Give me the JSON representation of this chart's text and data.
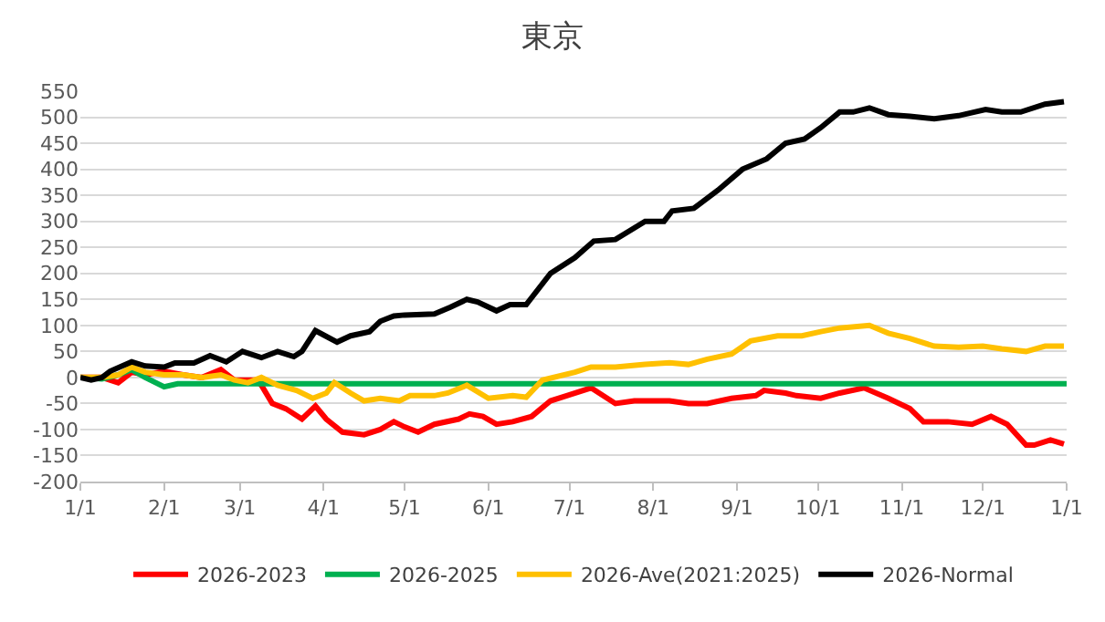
{
  "chart_data": {
    "type": "line",
    "title": "東京",
    "xlim": [
      "2026-01-01",
      "2027-01-01"
    ],
    "xticks": [
      {
        "value": "2026-01-01",
        "label": "1/1"
      },
      {
        "value": "2026-02-01",
        "label": "2/1"
      },
      {
        "value": "2026-03-01",
        "label": "3/1"
      },
      {
        "value": "2026-04-01",
        "label": "4/1"
      },
      {
        "value": "2026-05-01",
        "label": "5/1"
      },
      {
        "value": "2026-06-01",
        "label": "6/1"
      },
      {
        "value": "2026-07-01",
        "label": "7/1"
      },
      {
        "value": "2026-08-01",
        "label": "8/1"
      },
      {
        "value": "2026-09-01",
        "label": "9/1"
      },
      {
        "value": "2026-10-01",
        "label": "10/1"
      },
      {
        "value": "2026-11-01",
        "label": "11/1"
      },
      {
        "value": "2026-12-01",
        "label": "12/1"
      },
      {
        "value": "2027-01-01",
        "label": "1/1"
      }
    ],
    "ylim": [
      -200,
      550
    ],
    "yticks": [
      -200,
      -150,
      -100,
      -50,
      0,
      50,
      100,
      150,
      200,
      250,
      300,
      350,
      400,
      450,
      500,
      550
    ],
    "grid": "y",
    "legend": "bottom",
    "marker": "none",
    "line_style": "solid",
    "series": [
      {
        "name": "2026-2023",
        "color": "#ff0000",
        "x": [
          "2026-01-01",
          "2026-01-09",
          "2026-01-15",
          "2026-01-20",
          "2026-01-25",
          "2026-02-01",
          "2026-02-08",
          "2026-02-15",
          "2026-02-22",
          "2026-02-27",
          "2026-03-07",
          "2026-03-09",
          "2026-03-13",
          "2026-03-18",
          "2026-03-24",
          "2026-03-29",
          "2026-04-02",
          "2026-04-08",
          "2026-04-16",
          "2026-04-22",
          "2026-04-27",
          "2026-05-01",
          "2026-05-06",
          "2026-05-12",
          "2026-05-21",
          "2026-05-25",
          "2026-05-30",
          "2026-06-04",
          "2026-06-10",
          "2026-06-17",
          "2026-06-24",
          "2026-06-30",
          "2026-07-09",
          "2026-07-18",
          "2026-07-25",
          "2026-08-07",
          "2026-08-14",
          "2026-08-21",
          "2026-08-30",
          "2026-09-08",
          "2026-09-11",
          "2026-09-19",
          "2026-09-23",
          "2026-10-02",
          "2026-10-09",
          "2026-10-18",
          "2026-10-27",
          "2026-11-04",
          "2026-11-09",
          "2026-11-18",
          "2026-11-27",
          "2026-12-04",
          "2026-12-10",
          "2026-12-17",
          "2026-12-20",
          "2026-12-26",
          "2026-12-31"
        ],
        "values": [
          0,
          0,
          -10,
          10,
          5,
          12,
          5,
          0,
          15,
          -5,
          -5,
          -15,
          -50,
          -60,
          -80,
          -55,
          -80,
          -105,
          -110,
          -100,
          -85,
          -95,
          -105,
          -90,
          -80,
          -70,
          -75,
          -90,
          -85,
          -75,
          -45,
          -35,
          -20,
          -50,
          -45,
          -45,
          -50,
          -50,
          -40,
          -35,
          -25,
          -30,
          -35,
          -40,
          -30,
          -20,
          -40,
          -60,
          -85,
          -85,
          -90,
          -75,
          -90,
          -130,
          -130,
          -120,
          -128
        ]
      },
      {
        "name": "2026-2025",
        "color": "#00b050",
        "x": [
          "2026-01-01",
          "2026-01-09",
          "2026-01-15",
          "2026-01-20",
          "2026-01-25",
          "2026-02-01",
          "2026-02-06",
          "2027-01-01"
        ],
        "values": [
          0,
          -3,
          5,
          15,
          0,
          -18,
          -12,
          -12
        ]
      },
      {
        "name": "2026-Ave(2021:2025)",
        "color": "#ffc000",
        "x": [
          "2026-01-01",
          "2026-01-09",
          "2026-01-15",
          "2026-01-20",
          "2026-01-25",
          "2026-02-01",
          "2026-02-08",
          "2026-02-15",
          "2026-02-22",
          "2026-02-27",
          "2026-03-04",
          "2026-03-09",
          "2026-03-15",
          "2026-03-22",
          "2026-03-28",
          "2026-04-02",
          "2026-04-05",
          "2026-04-11",
          "2026-04-16",
          "2026-04-22",
          "2026-04-29",
          "2026-05-03",
          "2026-05-12",
          "2026-05-17",
          "2026-05-24",
          "2026-06-01",
          "2026-06-10",
          "2026-06-15",
          "2026-06-21",
          "2026-07-03",
          "2026-07-09",
          "2026-07-18",
          "2026-07-29",
          "2026-08-07",
          "2026-08-14",
          "2026-08-21",
          "2026-08-30",
          "2026-09-06",
          "2026-09-16",
          "2026-09-25",
          "2026-10-02",
          "2026-10-09",
          "2026-10-20",
          "2026-10-27",
          "2026-11-04",
          "2026-11-13",
          "2026-11-22",
          "2026-12-01",
          "2026-12-08",
          "2026-12-17",
          "2026-12-24",
          "2026-12-31"
        ],
        "values": [
          0,
          0,
          5,
          20,
          10,
          5,
          5,
          0,
          5,
          -5,
          -10,
          0,
          -15,
          -25,
          -40,
          -30,
          -10,
          -30,
          -45,
          -40,
          -45,
          -35,
          -35,
          -30,
          -15,
          -40,
          -35,
          -38,
          -5,
          10,
          20,
          20,
          25,
          28,
          25,
          35,
          45,
          70,
          80,
          80,
          88,
          95,
          100,
          85,
          75,
          60,
          58,
          60,
          55,
          50,
          60,
          60
        ]
      },
      {
        "name": "2026-Normal",
        "color": "#000000",
        "x": [
          "2026-01-01",
          "2026-01-05",
          "2026-01-09",
          "2026-01-12",
          "2026-01-20",
          "2026-01-25",
          "2026-02-01",
          "2026-02-05",
          "2026-02-12",
          "2026-02-18",
          "2026-02-24",
          "2026-03-02",
          "2026-03-09",
          "2026-03-15",
          "2026-03-21",
          "2026-03-24",
          "2026-03-29",
          "2026-04-06",
          "2026-04-11",
          "2026-04-18",
          "2026-04-22",
          "2026-04-27",
          "2026-05-01",
          "2026-05-12",
          "2026-05-18",
          "2026-05-24",
          "2026-05-28",
          "2026-06-04",
          "2026-06-09",
          "2026-06-15",
          "2026-06-24",
          "2026-07-03",
          "2026-07-10",
          "2026-07-18",
          "2026-07-29",
          "2026-08-05",
          "2026-08-08",
          "2026-08-16",
          "2026-08-25",
          "2026-09-03",
          "2026-09-12",
          "2026-09-19",
          "2026-09-26",
          "2026-10-02",
          "2026-10-09",
          "2026-10-14",
          "2026-10-20",
          "2026-10-27",
          "2026-11-04",
          "2026-11-13",
          "2026-11-22",
          "2026-12-02",
          "2026-12-08",
          "2026-12-15",
          "2026-12-24",
          "2026-12-31"
        ],
        "values": [
          0,
          -5,
          0,
          12,
          30,
          22,
          20,
          28,
          28,
          42,
          30,
          50,
          38,
          50,
          40,
          50,
          90,
          68,
          80,
          88,
          108,
          118,
          120,
          122,
          135,
          150,
          145,
          128,
          140,
          140,
          200,
          230,
          262,
          265,
          300,
          300,
          320,
          325,
          360,
          400,
          420,
          450,
          458,
          480,
          510,
          510,
          518,
          505,
          502,
          497,
          503,
          515,
          510,
          510,
          525,
          530
        ]
      }
    ]
  }
}
